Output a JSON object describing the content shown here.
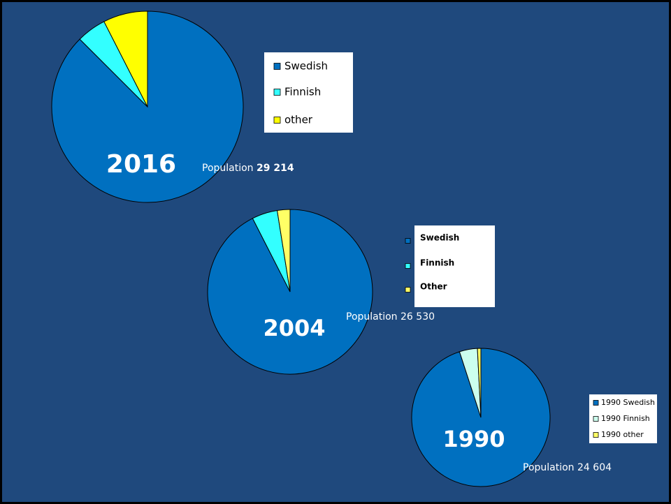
{
  "chart_data": [
    {
      "type": "pie",
      "title": "2016",
      "population_label": "Population",
      "population": "29 214",
      "categories": [
        "Swedish",
        "Finnish",
        "other"
      ],
      "values": [
        87.5,
        5,
        7.5
      ],
      "colors": [
        "#0070c0",
        "#33ffff",
        "#ffff00"
      ]
    },
    {
      "type": "pie",
      "title": "2004",
      "population_label": "Population",
      "population": "26 530",
      "categories": [
        "Swedish",
        "Finnish",
        "Other"
      ],
      "values": [
        92.5,
        5,
        2.5
      ],
      "colors": [
        "#0070c0",
        "#33ffff",
        "#ffff66"
      ]
    },
    {
      "type": "pie",
      "title": "1990",
      "population_label": "Population",
      "population": "24 604",
      "categories": [
        "1990 Swedish",
        "1990 Finnish",
        "1990 other"
      ],
      "values": [
        95,
        4.2,
        0.8
      ],
      "colors": [
        "#0070c0",
        "#ccffee",
        "#ffff66"
      ]
    }
  ]
}
